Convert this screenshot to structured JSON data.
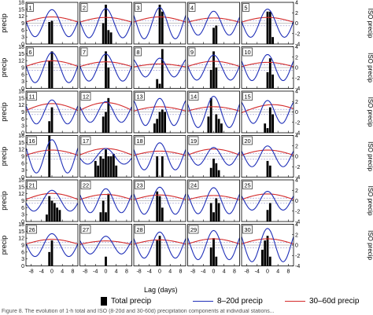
{
  "figure": {
    "left_axis_label": "precip",
    "right_axis_label": "ISO precip",
    "x_axis_label": "Lag (days)",
    "x_ticks": [
      "-8",
      "-4",
      "0",
      "4",
      "8"
    ],
    "y_left_ticks": [
      "18",
      "15",
      "12",
      "9",
      "6",
      "3",
      "0"
    ],
    "y_right_ticks": [
      "4",
      "2",
      "0",
      "-2",
      "-4"
    ],
    "caption": "Figure 8. The evolution of 1-h total and ISO (8-20d and 30-60d) precipitation components at individual stations..."
  },
  "legend": {
    "total": "Total precip",
    "short": "8–20d precip",
    "long": "30–60d precip"
  },
  "colors": {
    "bars": "#000000",
    "short_line": "#1f2fb8",
    "long_line": "#d42a2a",
    "dashed": "#8f8fc8"
  },
  "chart_data": {
    "type": "bar",
    "rows": 6,
    "cols": 5,
    "xlim": [
      -10,
      10
    ],
    "ylim_left": [
      0,
      18
    ],
    "ylim_right": [
      -4,
      4
    ],
    "bar_lags": [
      -6,
      -5,
      -4,
      -3,
      -2,
      -1,
      0,
      1,
      2,
      3,
      4,
      5,
      6
    ],
    "panels": [
      {
        "label": "1",
        "bars": [
          0,
          0,
          0,
          0,
          0,
          9.5,
          10,
          0,
          0,
          0,
          0,
          0,
          0
        ],
        "short_amp": 2.6,
        "short_period": 13,
        "long_amp": 1.2,
        "long_phase": 0
      },
      {
        "label": "2",
        "bars": [
          0,
          0,
          0,
          0,
          0,
          9,
          17,
          6,
          5,
          0,
          0,
          0,
          0
        ],
        "short_amp": 2.8,
        "short_period": 13,
        "long_amp": 1.1,
        "long_phase": 0
      },
      {
        "label": "3",
        "bars": [
          0,
          0,
          0,
          0,
          0,
          0,
          17,
          14,
          0,
          0,
          0,
          0,
          0
        ],
        "short_amp": 3.0,
        "short_period": 12,
        "long_amp": 1.2,
        "long_phase": 0
      },
      {
        "label": "4",
        "bars": [
          0,
          0,
          0,
          0,
          0,
          0,
          7,
          8,
          0,
          0,
          0,
          0,
          0
        ],
        "short_amp": 2.3,
        "short_period": 12,
        "long_amp": 1.0,
        "long_phase": 0
      },
      {
        "label": "5",
        "bars": [
          0,
          0,
          0,
          0,
          0,
          0,
          14,
          14,
          3,
          0,
          0,
          0,
          0
        ],
        "short_amp": 2.7,
        "short_period": 13,
        "long_amp": 1.1,
        "long_phase": 0
      },
      {
        "label": "6",
        "bars": [
          0,
          0,
          0,
          0,
          0,
          12,
          16,
          0,
          0,
          0,
          0,
          0,
          0
        ],
        "short_amp": 2.9,
        "short_period": 13,
        "long_amp": 1.3,
        "long_phase": 0
      },
      {
        "label": "7",
        "bars": [
          0,
          0,
          0,
          0,
          0,
          0,
          16,
          9,
          0,
          0,
          0,
          0,
          0
        ],
        "short_amp": 2.6,
        "short_period": 13,
        "long_amp": 1.1,
        "long_phase": 0
      },
      {
        "label": "8",
        "bars": [
          0,
          0,
          0,
          0,
          0,
          4,
          2,
          17,
          0,
          0,
          0,
          0,
          0
        ],
        "short_amp": 1.8,
        "short_period": 11,
        "long_amp": 0.7,
        "long_phase": 0
      },
      {
        "label": "9",
        "bars": [
          0,
          0,
          0,
          0,
          0,
          8,
          16,
          9,
          0,
          0,
          0,
          0,
          0
        ],
        "short_amp": 2.4,
        "short_period": 13,
        "long_amp": 1.2,
        "long_phase": 0
      },
      {
        "label": "10",
        "bars": [
          0,
          0,
          0,
          0,
          0,
          0,
          7,
          13,
          6,
          0,
          0,
          0,
          0
        ],
        "short_amp": 2.5,
        "short_period": 12,
        "long_amp": 1.0,
        "long_phase": 0
      },
      {
        "label": "11",
        "bars": [
          0,
          0,
          0,
          0,
          0,
          5,
          11,
          0,
          0,
          0,
          0,
          0,
          0
        ],
        "short_amp": 2.3,
        "short_period": 12,
        "long_amp": 1.6,
        "long_phase": 0
      },
      {
        "label": "12",
        "bars": [
          0,
          0,
          0,
          0,
          0,
          7,
          9,
          15,
          0,
          0,
          0,
          0,
          0
        ],
        "short_amp": 2.0,
        "short_period": 12,
        "long_amp": 1.8,
        "long_phase": 0
      },
      {
        "label": "13",
        "bars": [
          0,
          0,
          0,
          0,
          4,
          6,
          9,
          10,
          9,
          0,
          0,
          0,
          0
        ],
        "short_amp": 2.6,
        "short_period": 11,
        "long_amp": 1.0,
        "long_phase": 0
      },
      {
        "label": "14",
        "bars": [
          0,
          0,
          0,
          0,
          7,
          15,
          0,
          8,
          6,
          4,
          0,
          0,
          0
        ],
        "short_amp": 3.0,
        "short_period": 12,
        "long_amp": 1.0,
        "long_phase": 0
      },
      {
        "label": "15",
        "bars": [
          0,
          0,
          0,
          0,
          0,
          4,
          2,
          11,
          8,
          0,
          0,
          0,
          0
        ],
        "short_amp": 2.2,
        "short_period": 11,
        "long_amp": 1.4,
        "long_phase": 2
      },
      {
        "label": "16",
        "bars": [
          0,
          0,
          0,
          0,
          0,
          18,
          0,
          0,
          0,
          0,
          0,
          0,
          0
        ],
        "short_amp": 3.2,
        "short_period": 12,
        "long_amp": 1.2,
        "long_phase": 0
      },
      {
        "label": "17",
        "bars": [
          0,
          0,
          7,
          5,
          9,
          8,
          12,
          9,
          9,
          10,
          5,
          0,
          0
        ],
        "short_amp": 1.5,
        "short_period": 14,
        "long_amp": 1.5,
        "long_phase": 0
      },
      {
        "label": "18",
        "bars": [
          0,
          0,
          0,
          0,
          0,
          9,
          0,
          9,
          0,
          0,
          0,
          0,
          0
        ],
        "short_amp": 2.6,
        "short_period": 12,
        "long_amp": 1.0,
        "long_phase": 0
      },
      {
        "label": "19",
        "bars": [
          0,
          0,
          0,
          0,
          0,
          4,
          8,
          6,
          3,
          0,
          0,
          0,
          0
        ],
        "short_amp": 1.7,
        "short_period": 12,
        "long_amp": 1.4,
        "long_phase": 0
      },
      {
        "label": "20",
        "bars": [
          0,
          0,
          0,
          0,
          0,
          0,
          7,
          5,
          0,
          0,
          0,
          0,
          0
        ],
        "short_amp": 2.0,
        "short_period": 12,
        "long_amp": 1.2,
        "long_phase": 0
      },
      {
        "label": "21",
        "bars": [
          0,
          0,
          0,
          0,
          3,
          11,
          9,
          8,
          6,
          5,
          0,
          0,
          0
        ],
        "short_amp": 2.0,
        "short_period": 14,
        "long_amp": 1.4,
        "long_phase": 0
      },
      {
        "label": "22",
        "bars": [
          0,
          0,
          0,
          0,
          4,
          9,
          4,
          12,
          0,
          0,
          0,
          0,
          0
        ],
        "short_amp": 2.3,
        "short_period": 12,
        "long_amp": 1.2,
        "long_phase": 0
      },
      {
        "label": "23",
        "bars": [
          0,
          0,
          0,
          0,
          0,
          13,
          11,
          6,
          0,
          0,
          0,
          0,
          0
        ],
        "short_amp": 2.6,
        "short_period": 12,
        "long_amp": 1.1,
        "long_phase": 0
      },
      {
        "label": "24",
        "bars": [
          0,
          0,
          0,
          0,
          0,
          8,
          4,
          10,
          8,
          0,
          0,
          0,
          0
        ],
        "short_amp": 2.5,
        "short_period": 12,
        "long_amp": 1.0,
        "long_phase": 0
      },
      {
        "label": "25",
        "bars": [
          0,
          0,
          0,
          0,
          0,
          0,
          5,
          8,
          0,
          0,
          0,
          0,
          0
        ],
        "short_amp": 1.8,
        "short_period": 12,
        "long_amp": 1.3,
        "long_phase": 0
      },
      {
        "label": "26",
        "bars": [
          0,
          0,
          0,
          0,
          0,
          6,
          11,
          0,
          0,
          0,
          0,
          0,
          0
        ],
        "short_amp": 2.2,
        "short_period": 13,
        "long_amp": 1.1,
        "long_phase": 0
      },
      {
        "label": "27",
        "bars": [
          0,
          0,
          0,
          0,
          0,
          0,
          4,
          0,
          0,
          0,
          0,
          0,
          0
        ],
        "short_amp": 1.7,
        "short_period": 12,
        "long_amp": 0.8,
        "long_phase": 0
      },
      {
        "label": "28",
        "bars": [
          0,
          0,
          0,
          0,
          0,
          11,
          13,
          0,
          0,
          0,
          0,
          0,
          0
        ],
        "short_amp": 2.5,
        "short_period": 12,
        "long_amp": 1.0,
        "long_phase": 0
      },
      {
        "label": "29",
        "bars": [
          0,
          0,
          0,
          0,
          0,
          8,
          12,
          4,
          0,
          0,
          0,
          0,
          0
        ],
        "short_amp": 2.8,
        "short_period": 12,
        "long_amp": 1.2,
        "long_phase": 0
      },
      {
        "label": "30",
        "bars": [
          0,
          0,
          0,
          0,
          7,
          11,
          13,
          4,
          0,
          0,
          0,
          0,
          0
        ],
        "short_amp": 3.2,
        "short_period": 12,
        "long_amp": 1.2,
        "long_phase": 0
      }
    ]
  }
}
